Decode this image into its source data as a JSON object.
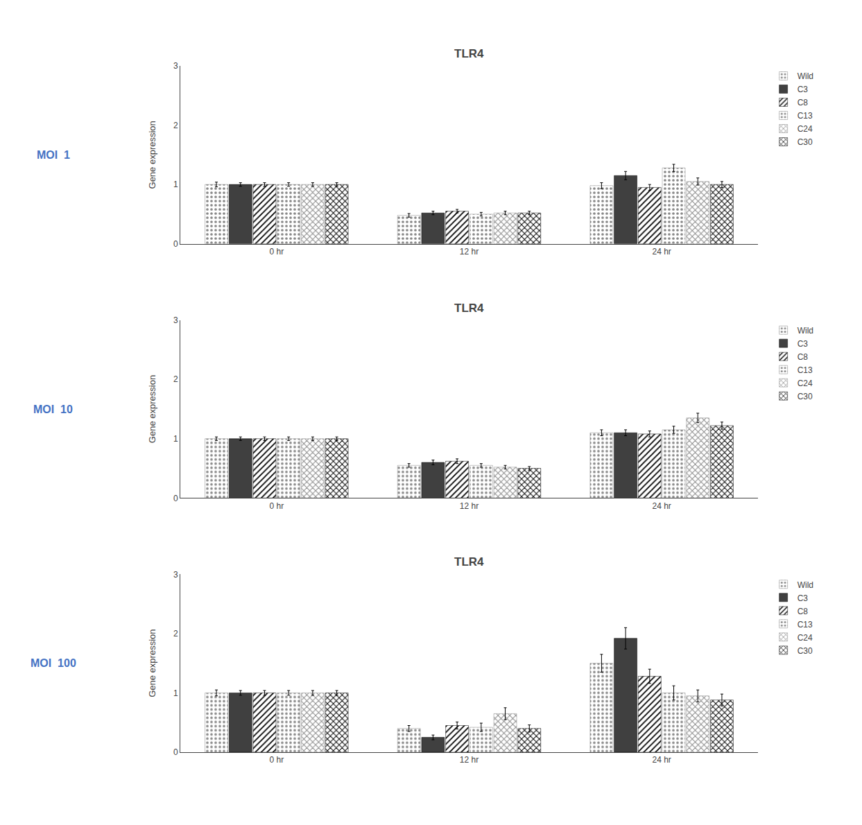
{
  "chart_data": [
    {
      "type": "bar",
      "title": "TLR4",
      "ylabel": "Gene expression",
      "categories": [
        "0 hr",
        "12 hr",
        "24 hr"
      ],
      "series": [
        {
          "name": "Wild",
          "color": "#d8d8d8",
          "values": [
            1.0,
            0.48,
            0.98
          ],
          "errors": [
            0.04,
            0.03,
            0.05
          ]
        },
        {
          "name": "C3",
          "color": "#404040",
          "values": [
            1.0,
            0.52,
            1.15
          ],
          "errors": [
            0.03,
            0.03,
            0.07
          ]
        },
        {
          "name": "C8",
          "color": "#606060",
          "values": [
            1.0,
            0.55,
            0.95
          ],
          "errors": [
            0.03,
            0.03,
            0.05
          ]
        },
        {
          "name": "C13",
          "color": "#c0c0c0",
          "values": [
            1.0,
            0.5,
            1.28
          ],
          "errors": [
            0.03,
            0.03,
            0.06
          ]
        },
        {
          "name": "C24",
          "color": "#d0d0d0",
          "values": [
            1.0,
            0.52,
            1.05
          ],
          "errors": [
            0.03,
            0.03,
            0.06
          ]
        },
        {
          "name": "C30",
          "color": "#404040",
          "values": [
            1.0,
            0.52,
            1.0
          ],
          "errors": [
            0.03,
            0.03,
            0.05
          ]
        }
      ],
      "ylim": [
        0,
        3
      ],
      "yticks": [
        0,
        1,
        2,
        3
      ],
      "grid": false,
      "legend": "right",
      "annotations": [
        {
          "text": "MOI  1",
          "color": "#4472C4"
        }
      ]
    },
    {
      "type": "bar",
      "title": "TLR4",
      "ylabel": "Gene expression",
      "categories": [
        "0 hr",
        "12 hr",
        "24 hr"
      ],
      "series": [
        {
          "name": "Wild",
          "color": "#d8d8d8",
          "values": [
            1.0,
            0.55,
            1.1
          ],
          "errors": [
            0.03,
            0.03,
            0.05
          ]
        },
        {
          "name": "C3",
          "color": "#404040",
          "values": [
            1.0,
            0.6,
            1.1
          ],
          "errors": [
            0.03,
            0.04,
            0.05
          ]
        },
        {
          "name": "C8",
          "color": "#606060",
          "values": [
            1.0,
            0.62,
            1.08
          ],
          "errors": [
            0.03,
            0.04,
            0.05
          ]
        },
        {
          "name": "C13",
          "color": "#c0c0c0",
          "values": [
            1.0,
            0.55,
            1.15
          ],
          "errors": [
            0.03,
            0.03,
            0.06
          ]
        },
        {
          "name": "C24",
          "color": "#d0d0d0",
          "values": [
            1.0,
            0.52,
            1.35
          ],
          "errors": [
            0.03,
            0.03,
            0.08
          ]
        },
        {
          "name": "C30",
          "color": "#404040",
          "values": [
            1.0,
            0.5,
            1.22
          ],
          "errors": [
            0.03,
            0.03,
            0.06
          ]
        }
      ],
      "ylim": [
        0,
        3
      ],
      "yticks": [
        0,
        1,
        2,
        3
      ],
      "grid": false,
      "legend": "right",
      "annotations": [
        {
          "text": "MOI  10",
          "color": "#4472C4"
        }
      ]
    },
    {
      "type": "bar",
      "title": "TLR4",
      "ylabel": "Gene expression",
      "categories": [
        "0 hr",
        "12 hr",
        "24 hr"
      ],
      "series": [
        {
          "name": "Wild",
          "color": "#d8d8d8",
          "values": [
            1.0,
            0.4,
            1.5
          ],
          "errors": [
            0.05,
            0.05,
            0.15
          ]
        },
        {
          "name": "C3",
          "color": "#404040",
          "values": [
            1.0,
            0.25,
            1.92
          ],
          "errors": [
            0.04,
            0.04,
            0.18
          ]
        },
        {
          "name": "C8",
          "color": "#606060",
          "values": [
            1.0,
            0.45,
            1.28
          ],
          "errors": [
            0.04,
            0.06,
            0.12
          ]
        },
        {
          "name": "C13",
          "color": "#c0c0c0",
          "values": [
            1.0,
            0.42,
            1.0
          ],
          "errors": [
            0.04,
            0.07,
            0.12
          ]
        },
        {
          "name": "C24",
          "color": "#d0d0d0",
          "values": [
            1.0,
            0.65,
            0.95
          ],
          "errors": [
            0.04,
            0.1,
            0.1
          ]
        },
        {
          "name": "C30",
          "color": "#404040",
          "values": [
            1.0,
            0.4,
            0.88
          ],
          "errors": [
            0.04,
            0.06,
            0.1
          ]
        }
      ],
      "ylim": [
        0,
        3
      ],
      "yticks": [
        0,
        1,
        2,
        3
      ],
      "grid": false,
      "legend": "right",
      "annotations": [
        {
          "text": "MOI  100",
          "color": "#4472C4"
        }
      ]
    }
  ]
}
